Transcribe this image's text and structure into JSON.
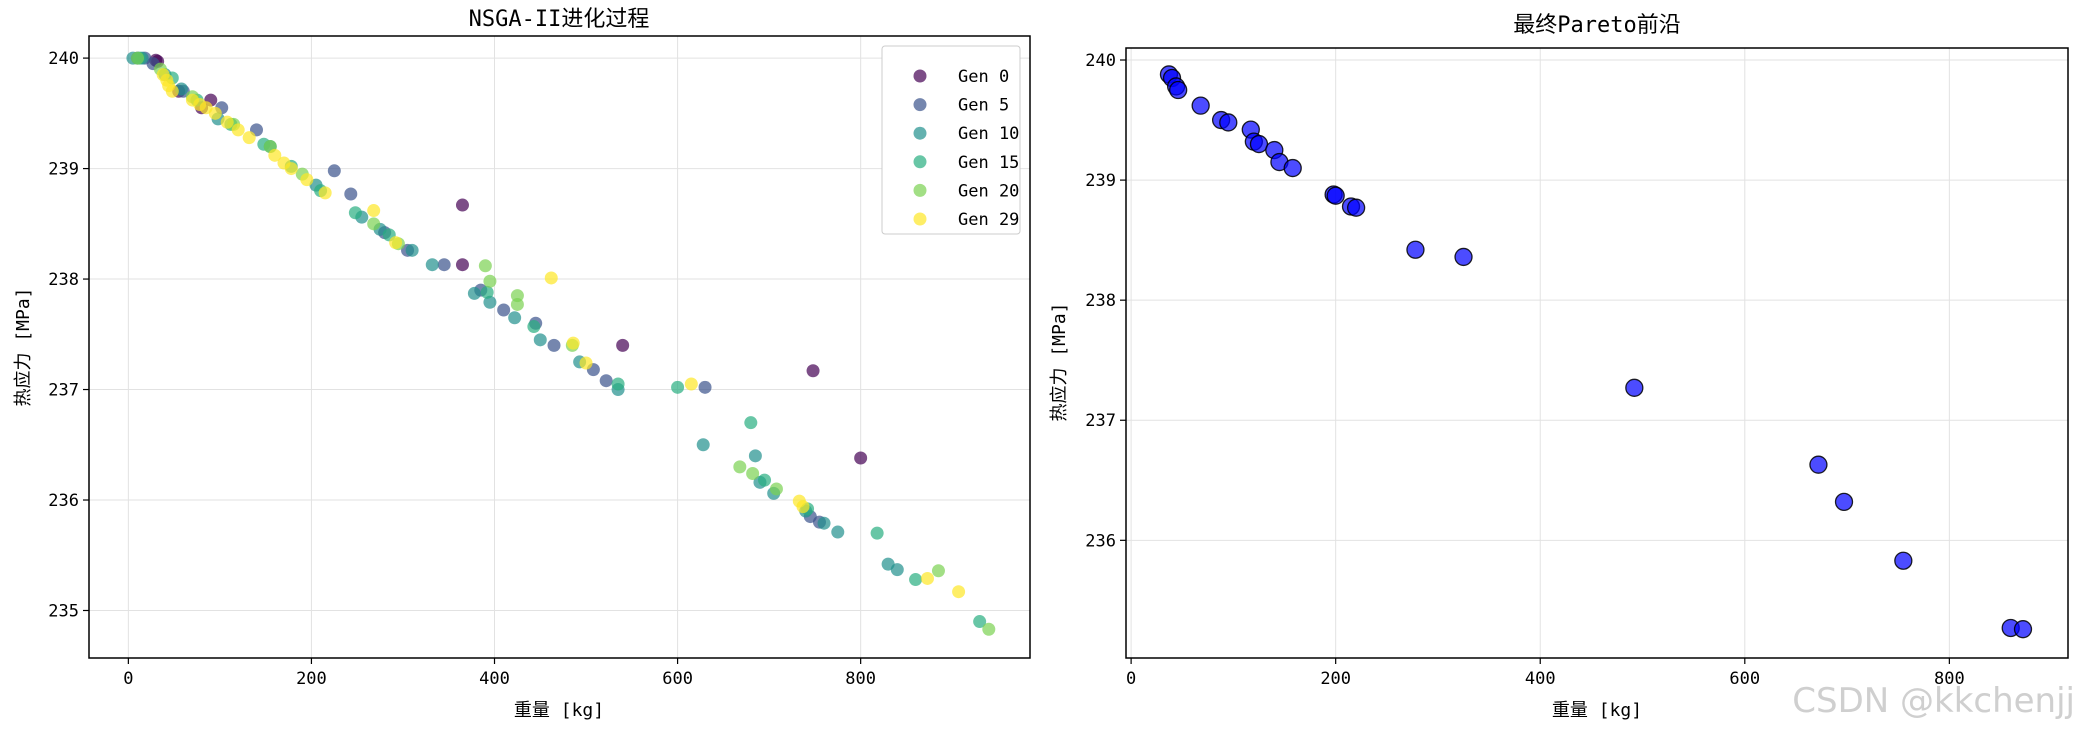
{
  "watermark": "CSDN @kkchenjj",
  "chart_data": [
    {
      "type": "scatter",
      "title": "NSGA-II进化过程",
      "xlabel": "重量 [kg]",
      "ylabel": "热应力 [MPa]",
      "xlim": [
        -43,
        985
      ],
      "ylim": [
        234.57,
        240.2
      ],
      "xticks": [
        0,
        200,
        400,
        600,
        800
      ],
      "yticks": [
        235,
        236,
        237,
        238,
        239,
        240
      ],
      "grid": true,
      "legend_position": "top-right",
      "marker_alpha": 0.7,
      "series": [
        {
          "name": "Gen 0",
          "color": "#440154",
          "points": [
            [
              30,
              239.98
            ],
            [
              32,
              239.97
            ],
            [
              90,
              239.62
            ],
            [
              365,
              238.67
            ],
            [
              365,
              238.13
            ],
            [
              540,
              237.4
            ],
            [
              748,
              237.17
            ],
            [
              800,
              236.38
            ],
            [
              80,
              239.55
            ],
            [
              55,
              239.7
            ]
          ]
        },
        {
          "name": "Gen 5",
          "color": "#3b528b",
          "points": [
            [
              10,
              240
            ],
            [
              18,
              240
            ],
            [
              27,
              239.95
            ],
            [
              60,
              239.7
            ],
            [
              102,
              239.55
            ],
            [
              140,
              239.35
            ],
            [
              225,
              238.98
            ],
            [
              243,
              238.77
            ],
            [
              280,
              238.42
            ],
            [
              305,
              238.26
            ],
            [
              345,
              238.13
            ],
            [
              385,
              237.9
            ],
            [
              410,
              237.72
            ],
            [
              445,
              237.6
            ],
            [
              465,
              237.4
            ],
            [
              508,
              237.18
            ],
            [
              522,
              237.08
            ],
            [
              630,
              237.02
            ],
            [
              745,
              235.85
            ],
            [
              755,
              235.8
            ]
          ]
        },
        {
          "name": "Gen 10",
          "color": "#21908d",
          "points": [
            [
              5,
              240
            ],
            [
              15,
              240
            ],
            [
              40,
              239.85
            ],
            [
              58,
              239.72
            ],
            [
              98,
              239.45
            ],
            [
              155,
              239.2
            ],
            [
              205,
              238.85
            ],
            [
              255,
              238.56
            ],
            [
              275,
              238.45
            ],
            [
              310,
              238.26
            ],
            [
              332,
              238.13
            ],
            [
              378,
              237.87
            ],
            [
              395,
              237.79
            ],
            [
              422,
              237.65
            ],
            [
              450,
              237.45
            ],
            [
              493,
              237.25
            ],
            [
              535,
              237.0
            ],
            [
              628,
              236.5
            ],
            [
              685,
              236.4
            ],
            [
              690,
              236.16
            ],
            [
              705,
              236.06
            ],
            [
              740,
              235.9
            ],
            [
              760,
              235.79
            ],
            [
              775,
              235.71
            ],
            [
              830,
              235.42
            ],
            [
              840,
              235.37
            ]
          ]
        },
        {
          "name": "Gen 15",
          "color": "#28ae80",
          "points": [
            [
              12,
              240
            ],
            [
              48,
              239.82
            ],
            [
              75,
              239.62
            ],
            [
              112,
              239.4
            ],
            [
              148,
              239.22
            ],
            [
              178,
              239.02
            ],
            [
              210,
              238.8
            ],
            [
              248,
              238.6
            ],
            [
              285,
              238.4
            ],
            [
              392,
              237.88
            ],
            [
              443,
              237.57
            ],
            [
              535,
              237.05
            ],
            [
              600,
              237.02
            ],
            [
              680,
              236.7
            ],
            [
              695,
              236.18
            ],
            [
              742,
              235.92
            ],
            [
              818,
              235.7
            ],
            [
              860,
              235.28
            ],
            [
              930,
              234.9
            ]
          ]
        },
        {
          "name": "Gen 20",
          "color": "#7ad151",
          "points": [
            [
              10,
              240
            ],
            [
              35,
              239.9
            ],
            [
              70,
              239.65
            ],
            [
              115,
              239.4
            ],
            [
              155,
              239.2
            ],
            [
              190,
              238.95
            ],
            [
              268,
              238.5
            ],
            [
              295,
              238.32
            ],
            [
              390,
              238.12
            ],
            [
              395,
              237.98
            ],
            [
              425,
              237.85
            ],
            [
              425,
              237.77
            ],
            [
              485,
              237.4
            ],
            [
              668,
              236.3
            ],
            [
              682,
              236.24
            ],
            [
              708,
              236.1
            ],
            [
              885,
              235.36
            ],
            [
              940,
              234.83
            ]
          ]
        },
        {
          "name": "Gen 29",
          "color": "#fde725",
          "points": [
            [
              38,
              239.85
            ],
            [
              42,
              239.8
            ],
            [
              44,
              239.75
            ],
            [
              48,
              239.7
            ],
            [
              70,
              239.62
            ],
            [
              78,
              239.58
            ],
            [
              85,
              239.55
            ],
            [
              95,
              239.5
            ],
            [
              108,
              239.42
            ],
            [
              120,
              239.35
            ],
            [
              132,
              239.28
            ],
            [
              160,
              239.12
            ],
            [
              170,
              239.05
            ],
            [
              178,
              239.0
            ],
            [
              195,
              238.9
            ],
            [
              215,
              238.78
            ],
            [
              268,
              238.62
            ],
            [
              292,
              238.33
            ],
            [
              462,
              238.01
            ],
            [
              486,
              237.42
            ],
            [
              500,
              237.24
            ],
            [
              615,
              237.05
            ],
            [
              733,
              235.99
            ],
            [
              737,
              235.94
            ],
            [
              873,
              235.29
            ],
            [
              907,
              235.17
            ]
          ]
        }
      ]
    },
    {
      "type": "scatter",
      "title": "最终Pareto前沿",
      "xlabel": "重量 [kg]",
      "ylabel": "热应力 [MPa]",
      "xlim": [
        -5,
        916
      ],
      "ylim": [
        235.02,
        240.1
      ],
      "xticks": [
        0,
        200,
        400,
        600,
        800
      ],
      "yticks": [
        236,
        237,
        238,
        239,
        240
      ],
      "grid": true,
      "marker_color": "#0000ff",
      "marker_alpha": 0.7,
      "series": [
        {
          "points": [
            [
              37,
              239.88
            ],
            [
              40,
              239.85
            ],
            [
              44,
              239.78
            ],
            [
              46,
              239.75
            ],
            [
              68,
              239.62
            ],
            [
              88,
              239.5
            ],
            [
              95,
              239.48
            ],
            [
              117,
              239.42
            ],
            [
              120,
              239.32
            ],
            [
              125,
              239.3
            ],
            [
              140,
              239.25
            ],
            [
              145,
              239.15
            ],
            [
              158,
              239.1
            ],
            [
              198,
              238.88
            ],
            [
              200,
              238.87
            ],
            [
              215,
              238.78
            ],
            [
              220,
              238.77
            ],
            [
              278,
              238.42
            ],
            [
              325,
              238.36
            ],
            [
              492,
              237.27
            ],
            [
              672,
              236.63
            ],
            [
              697,
              236.32
            ],
            [
              755,
              235.83
            ],
            [
              860,
              235.27
            ],
            [
              872,
              235.26
            ]
          ]
        }
      ]
    }
  ]
}
